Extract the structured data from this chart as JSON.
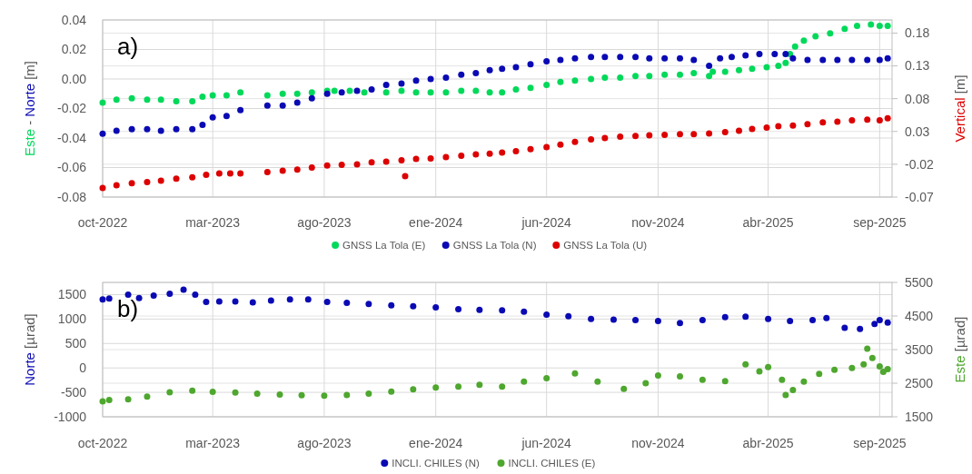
{
  "chart_data": [
    {
      "type": "scatter",
      "ylabel": "Este - Norte [m]",
      "y2label": "Vertical [m]",
      "annotations": [
        "a)"
      ],
      "marker": "circle",
      "grid": true,
      "legend": "bottom",
      "xlim": [
        "2022-10-01",
        "2025-09-18"
      ],
      "xticks": [
        {
          "value": "2022-10-01",
          "label": "oct-2022"
        },
        {
          "value": "2023-03-01",
          "label": "mar-2023"
        },
        {
          "value": "2023-08-01",
          "label": "ago-2023"
        },
        {
          "value": "2024-01-01",
          "label": "ene-2024"
        },
        {
          "value": "2024-06-01",
          "label": "jun-2024"
        },
        {
          "value": "2024-11-01",
          "label": "nov-2024"
        },
        {
          "value": "2025-04-01",
          "label": "abr-2025"
        },
        {
          "value": "2025-09-01",
          "label": "sep-2025"
        }
      ],
      "ylim": [
        -0.08,
        0.04
      ],
      "yticks": [
        -0.08,
        -0.06,
        -0.04,
        -0.02,
        {
          "value": 0,
          "label": "0.00"
        },
        0.02,
        0.04
      ],
      "y2lim": [
        -0.07,
        0.2
      ],
      "y2ticks": [
        -0.07,
        -0.02,
        0.03,
        0.08,
        0.13,
        0.18
      ],
      "series": [
        {
          "name": "GNSS La Tola (E)",
          "color": "#00d95a",
          "x": [
            "2022-10-01",
            "2022-10-20",
            "2022-11-10",
            "2022-12-01",
            "2022-12-20",
            "2023-01-10",
            "2023-02-01",
            "2023-02-15",
            "2023-03-01",
            "2023-03-20",
            "2023-04-08",
            "2023-05-15",
            "2023-06-05",
            "2023-06-25",
            "2023-07-15",
            "2023-08-05",
            "2023-08-15",
            "2023-09-05",
            "2023-09-25",
            "2023-10-25",
            "2023-11-15",
            "2023-12-05",
            "2023-12-25",
            "2024-01-15",
            "2024-02-05",
            "2024-02-25",
            "2024-03-15",
            "2024-04-01",
            "2024-04-20",
            "2024-05-10",
            "2024-06-01",
            "2024-06-20",
            "2024-07-10",
            "2024-08-01",
            "2024-08-20",
            "2024-09-10",
            "2024-10-01",
            "2024-10-20",
            "2024-11-10",
            "2024-12-01",
            "2024-12-20",
            "2025-01-10",
            "2025-01-15",
            "2025-02-01",
            "2025-02-20",
            "2025-03-10",
            "2025-03-30",
            "2025-04-15",
            "2025-04-25",
            "2025-05-01",
            "2025-05-08",
            "2025-05-20",
            "2025-06-05",
            "2025-06-25",
            "2025-07-15",
            "2025-08-01",
            "2025-08-20",
            "2025-09-01",
            "2025-09-12"
          ],
          "values": [
            -0.016,
            -0.014,
            -0.013,
            -0.014,
            -0.014,
            -0.015,
            -0.015,
            -0.012,
            -0.011,
            -0.011,
            -0.009,
            -0.011,
            -0.01,
            -0.01,
            -0.009,
            -0.008,
            -0.008,
            -0.008,
            -0.009,
            -0.009,
            -0.008,
            -0.009,
            -0.009,
            -0.009,
            -0.008,
            -0.008,
            -0.009,
            -0.009,
            -0.007,
            -0.006,
            -0.004,
            -0.002,
            -0.001,
            0,
            0.001,
            0.001,
            0.002,
            0.002,
            0.003,
            0.003,
            0.004,
            0.002,
            0.005,
            0.005,
            0.006,
            0.007,
            0.008,
            0.009,
            0.011,
            0.017,
            0.022,
            0.026,
            0.029,
            0.031,
            0.034,
            0.036,
            0.037,
            0.036,
            0.036
          ]
        },
        {
          "name": "GNSS La Tola (N)",
          "color": "#0a0ab4",
          "x": [
            "2022-10-01",
            "2022-10-20",
            "2022-11-10",
            "2022-12-01",
            "2022-12-20",
            "2023-01-10",
            "2023-02-01",
            "2023-02-15",
            "2023-03-01",
            "2023-03-20",
            "2023-04-08",
            "2023-05-15",
            "2023-06-05",
            "2023-06-25",
            "2023-07-15",
            "2023-08-05",
            "2023-08-25",
            "2023-09-15",
            "2023-10-05",
            "2023-10-25",
            "2023-11-15",
            "2023-12-05",
            "2023-12-25",
            "2024-01-15",
            "2024-02-05",
            "2024-02-25",
            "2024-03-15",
            "2024-04-01",
            "2024-04-20",
            "2024-05-10",
            "2024-06-01",
            "2024-06-20",
            "2024-07-10",
            "2024-08-01",
            "2024-08-20",
            "2024-09-10",
            "2024-10-01",
            "2024-10-20",
            "2024-11-10",
            "2024-12-01",
            "2024-12-20",
            "2025-01-10",
            "2025-01-25",
            "2025-02-10",
            "2025-03-01",
            "2025-03-20",
            "2025-04-10",
            "2025-04-25",
            "2025-05-05",
            "2025-05-25",
            "2025-06-15",
            "2025-07-05",
            "2025-07-25",
            "2025-08-15",
            "2025-09-01",
            "2025-09-12"
          ],
          "values": [
            -0.037,
            -0.035,
            -0.034,
            -0.034,
            -0.035,
            -0.034,
            -0.034,
            -0.031,
            -0.026,
            -0.025,
            -0.021,
            -0.018,
            -0.018,
            -0.016,
            -0.013,
            -0.01,
            -0.009,
            -0.008,
            -0.007,
            -0.004,
            -0.003,
            -0.001,
            0,
            0.001,
            0.003,
            0.004,
            0.006,
            0.007,
            0.008,
            0.01,
            0.012,
            0.013,
            0.014,
            0.015,
            0.015,
            0.015,
            0.015,
            0.014,
            0.014,
            0.014,
            0.013,
            0.009,
            0.014,
            0.015,
            0.016,
            0.017,
            0.017,
            0.017,
            0.014,
            0.013,
            0.013,
            0.013,
            0.013,
            0.013,
            0.013,
            0.014
          ]
        },
        {
          "name": "GNSS La Tola (U)",
          "color": "#dd0000",
          "axis": "y2",
          "x": [
            "2022-10-01",
            "2022-10-20",
            "2022-11-10",
            "2022-12-01",
            "2022-12-20",
            "2023-01-10",
            "2023-02-01",
            "2023-02-20",
            "2023-03-10",
            "2023-03-25",
            "2023-04-08",
            "2023-05-15",
            "2023-06-05",
            "2023-06-25",
            "2023-07-15",
            "2023-08-05",
            "2023-08-25",
            "2023-09-15",
            "2023-10-05",
            "2023-10-25",
            "2023-11-15",
            "2023-11-20",
            "2023-12-05",
            "2023-12-25",
            "2024-01-15",
            "2024-02-05",
            "2024-02-25",
            "2024-03-15",
            "2024-04-01",
            "2024-04-20",
            "2024-05-10",
            "2024-06-01",
            "2024-06-20",
            "2024-07-10",
            "2024-08-01",
            "2024-08-20",
            "2024-09-10",
            "2024-10-01",
            "2024-10-20",
            "2024-11-10",
            "2024-12-01",
            "2024-12-20",
            "2025-01-10",
            "2025-02-01",
            "2025-02-20",
            "2025-03-10",
            "2025-03-30",
            "2025-04-15",
            "2025-05-05",
            "2025-05-25",
            "2025-06-15",
            "2025-07-05",
            "2025-07-25",
            "2025-08-15",
            "2025-09-01",
            "2025-09-12"
          ],
          "values": [
            -0.056,
            -0.052,
            -0.049,
            -0.047,
            -0.045,
            -0.042,
            -0.04,
            -0.036,
            -0.034,
            -0.034,
            -0.034,
            -0.032,
            -0.03,
            -0.028,
            -0.025,
            -0.022,
            -0.021,
            -0.02,
            -0.017,
            -0.016,
            -0.014,
            -0.038,
            -0.012,
            -0.011,
            -0.009,
            -0.007,
            -0.005,
            -0.004,
            -0.002,
            0,
            0.003,
            0.006,
            0.01,
            0.014,
            0.018,
            0.02,
            0.022,
            0.023,
            0.024,
            0.025,
            0.026,
            0.026,
            0.027,
            0.029,
            0.031,
            0.034,
            0.036,
            0.038,
            0.039,
            0.041,
            0.044,
            0.045,
            0.047,
            0.048,
            0.047,
            0.05
          ]
        }
      ]
    },
    {
      "type": "scatter",
      "ylabel": "Norte [µrad]",
      "y2label": "Este [µrad]",
      "annotations": [
        "b)"
      ],
      "marker": "circle",
      "grid": true,
      "legend": "bottom",
      "xlim": [
        "2022-10-01",
        "2025-09-18"
      ],
      "xticks": [
        {
          "value": "2022-10-01",
          "label": "oct-2022"
        },
        {
          "value": "2023-03-01",
          "label": "mar-2023"
        },
        {
          "value": "2023-08-01",
          "label": "ago-2023"
        },
        {
          "value": "2024-01-01",
          "label": "ene-2024"
        },
        {
          "value": "2024-06-01",
          "label": "jun-2024"
        },
        {
          "value": "2024-11-01",
          "label": "nov-2024"
        },
        {
          "value": "2025-04-01",
          "label": "abr-2025"
        },
        {
          "value": "2025-09-01",
          "label": "sep-2025"
        }
      ],
      "ylim": [
        -1000,
        1750
      ],
      "yticks": [
        -1000,
        -500,
        0,
        500,
        1000,
        1500
      ],
      "y2lim": [
        1500,
        5500
      ],
      "y2ticks": [
        1500,
        2500,
        3500,
        4500,
        5500
      ],
      "series": [
        {
          "name": "INCLI. CHILES (N)",
          "color": "#0a0ab4",
          "x": [
            "2022-10-01",
            "2022-10-10",
            "2022-11-05",
            "2022-11-20",
            "2022-12-10",
            "2023-01-01",
            "2023-01-20",
            "2023-02-05",
            "2023-02-20",
            "2023-03-10",
            "2023-04-01",
            "2023-04-25",
            "2023-05-20",
            "2023-06-15",
            "2023-07-10",
            "2023-08-05",
            "2023-09-01",
            "2023-10-01",
            "2023-11-01",
            "2023-12-01",
            "2024-01-01",
            "2024-02-01",
            "2024-03-01",
            "2024-04-01",
            "2024-05-01",
            "2024-06-01",
            "2024-07-01",
            "2024-08-01",
            "2024-09-01",
            "2024-10-01",
            "2024-11-01",
            "2024-12-01",
            "2025-01-01",
            "2025-02-01",
            "2025-03-01",
            "2025-04-01",
            "2025-05-01",
            "2025-06-01",
            "2025-06-20",
            "2025-07-15",
            "2025-08-05",
            "2025-08-25",
            "2025-09-01",
            "2025-09-12"
          ],
          "values": [
            1400,
            1420,
            1500,
            1430,
            1480,
            1520,
            1600,
            1500,
            1350,
            1360,
            1360,
            1340,
            1380,
            1400,
            1400,
            1350,
            1330,
            1310,
            1280,
            1260,
            1240,
            1200,
            1190,
            1180,
            1150,
            1090,
            1060,
            1000,
            990,
            980,
            960,
            920,
            980,
            1040,
            1050,
            1000,
            960,
            980,
            1020,
            820,
            800,
            900,
            980,
            930
          ]
        },
        {
          "name": "INCLI. CHILES (E)",
          "color": "#4ea72e",
          "axis": "y2",
          "x": [
            "2022-10-01",
            "2022-10-10",
            "2022-11-05",
            "2022-12-01",
            "2023-01-01",
            "2023-02-01",
            "2023-03-01",
            "2023-04-01",
            "2023-05-01",
            "2023-06-01",
            "2023-07-01",
            "2023-08-01",
            "2023-09-01",
            "2023-10-01",
            "2023-11-01",
            "2023-12-01",
            "2024-01-01",
            "2024-02-01",
            "2024-03-01",
            "2024-04-01",
            "2024-05-01",
            "2024-06-01",
            "2024-07-10",
            "2024-08-10",
            "2024-09-15",
            "2024-10-15",
            "2024-11-01",
            "2024-12-01",
            "2025-01-01",
            "2025-02-01",
            "2025-03-01",
            "2025-03-20",
            "2025-04-01",
            "2025-04-20",
            "2025-04-25",
            "2025-05-05",
            "2025-05-20",
            "2025-06-10",
            "2025-07-01",
            "2025-07-25",
            "2025-08-10",
            "2025-08-15",
            "2025-08-22",
            "2025-09-01",
            "2025-09-06",
            "2025-09-12"
          ],
          "values": [
            1960,
            2000,
            2020,
            2100,
            2230,
            2280,
            2240,
            2220,
            2190,
            2160,
            2140,
            2130,
            2150,
            2190,
            2250,
            2320,
            2370,
            2400,
            2450,
            2400,
            2550,
            2650,
            2790,
            2550,
            2330,
            2500,
            2730,
            2700,
            2600,
            2560,
            3060,
            2850,
            2980,
            2600,
            2150,
            2300,
            2550,
            2780,
            2900,
            2950,
            3060,
            3530,
            3250,
            3000,
            2840,
            2920
          ]
        }
      ]
    }
  ]
}
